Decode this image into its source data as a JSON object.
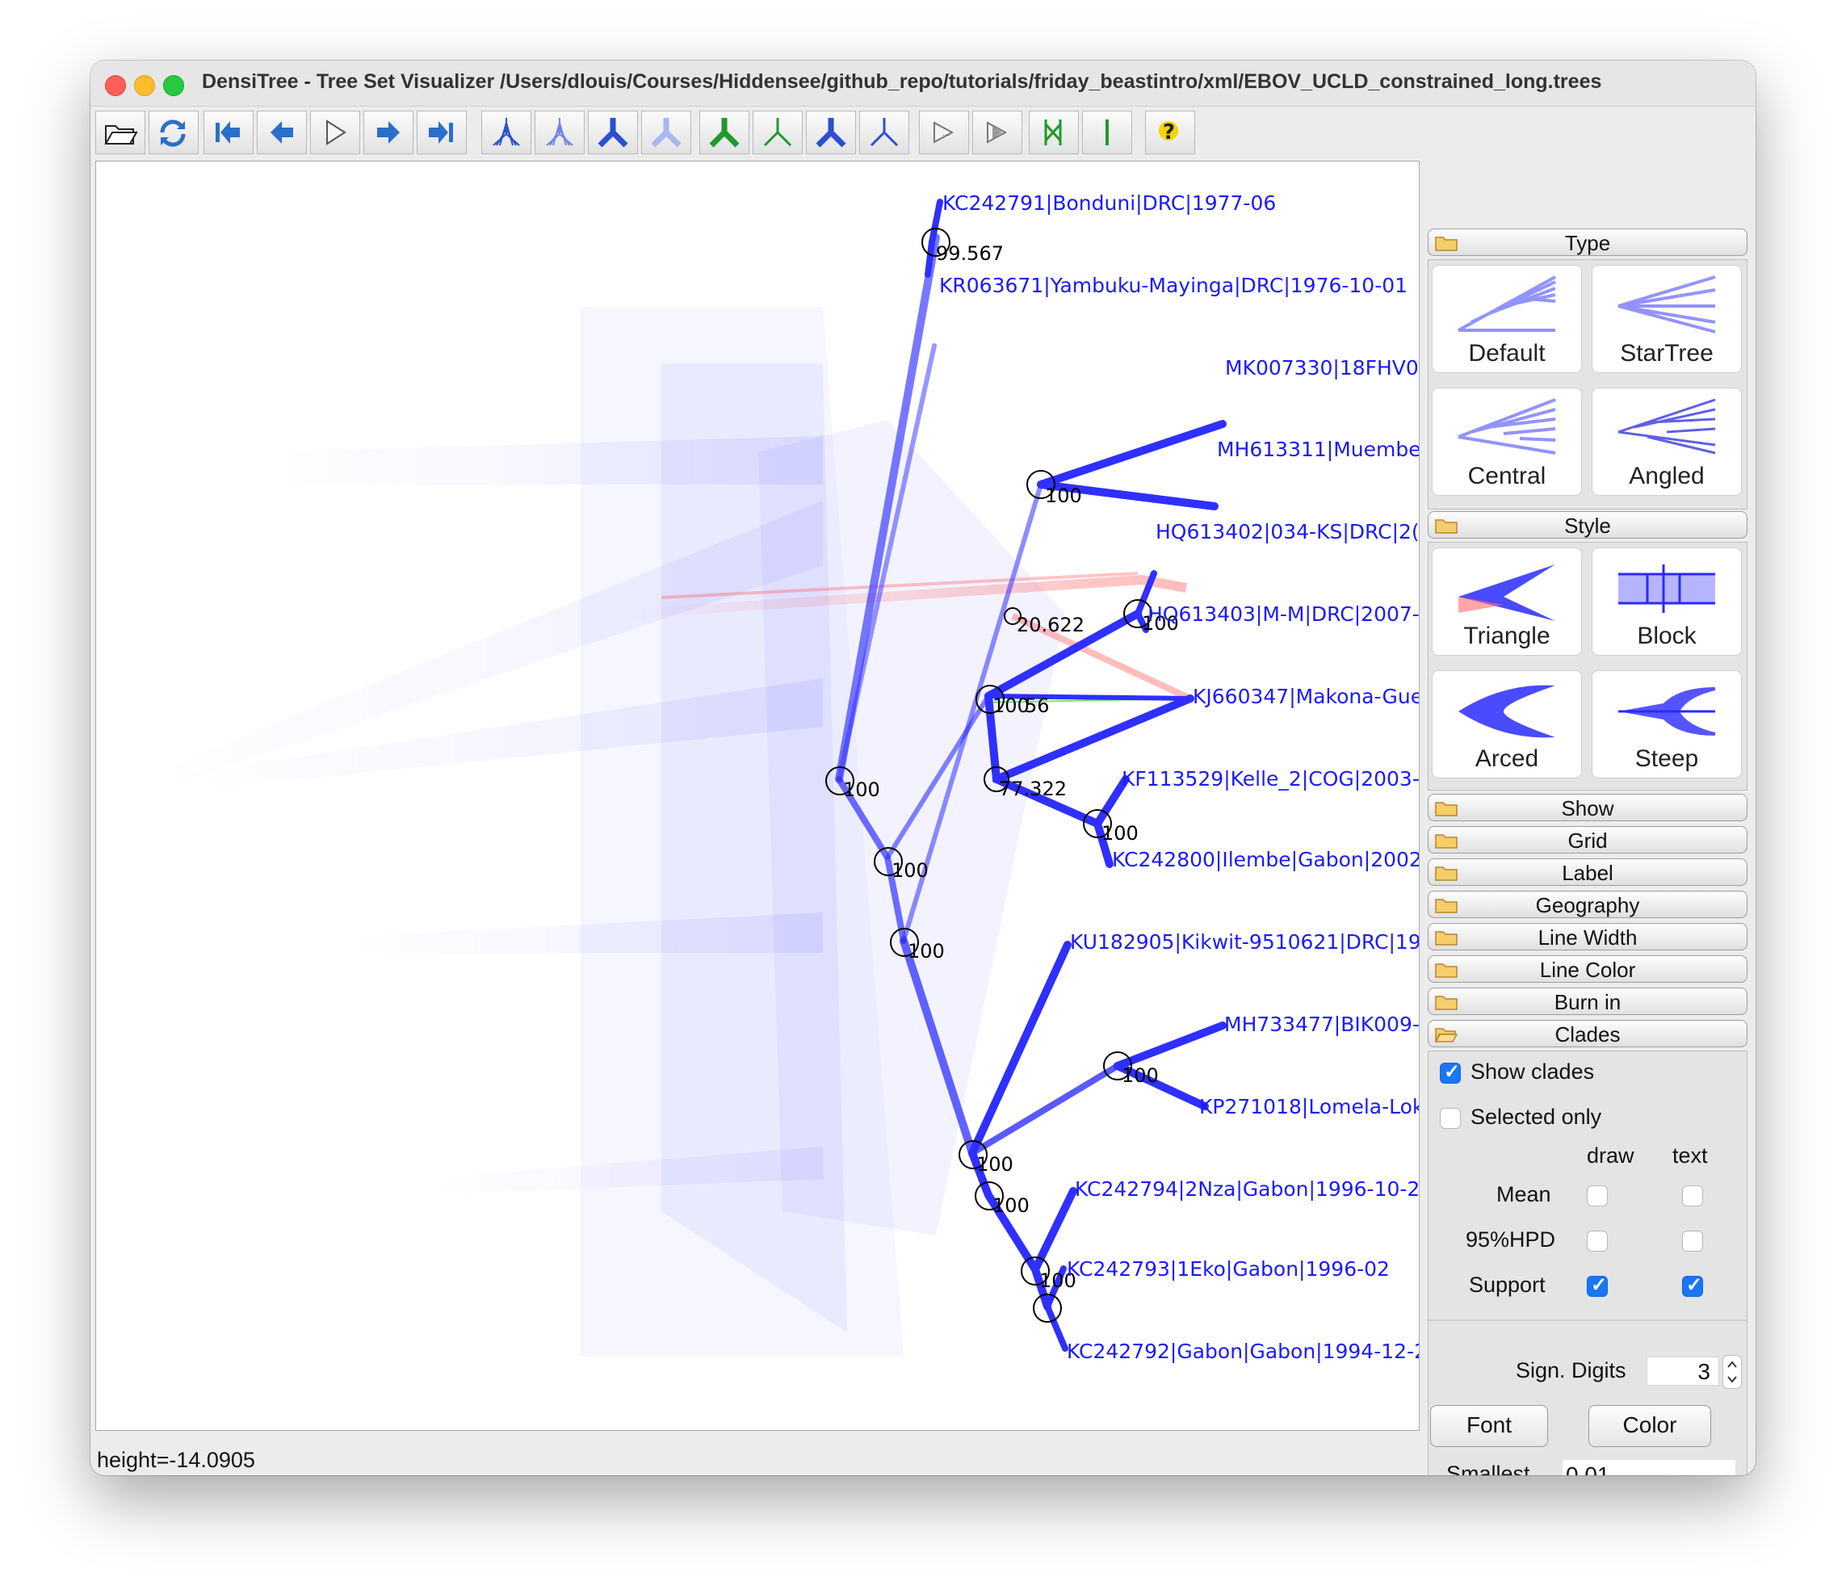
{
  "window": {
    "title": "DensiTree - Tree Set Visualizer /Users/dlouis/Courses/Hiddensee/github_repo/tutorials/friday_beastintro/xml/EBOV_UCLD_constrained_long.trees"
  },
  "toolbar": {
    "buttons": [
      {
        "name": "open-file",
        "icon": "folder-open-icon"
      },
      {
        "name": "reload",
        "icon": "refresh-icon"
      },
      {
        "name": "first",
        "icon": "first-icon"
      },
      {
        "name": "previous",
        "icon": "arrow-left-icon"
      },
      {
        "name": "play",
        "icon": "play-icon"
      },
      {
        "name": "next",
        "icon": "arrow-right-icon"
      },
      {
        "name": "last",
        "icon": "last-icon"
      },
      {
        "name": "show-trees-dark",
        "icon": "tree-set-icon"
      },
      {
        "name": "show-trees-light",
        "icon": "tree-set-light-icon"
      },
      {
        "name": "consensus-dark",
        "icon": "consensus-tree-icon"
      },
      {
        "name": "consensus-light",
        "icon": "consensus-tree-light-icon"
      },
      {
        "name": "root-canal-green",
        "icon": "green-tree-icon"
      },
      {
        "name": "root-canal-green-thin",
        "icon": "green-tree-thin-icon"
      },
      {
        "name": "tree-blue",
        "icon": "blue-tree-icon"
      },
      {
        "name": "tree-blue-thin",
        "icon": "blue-tree-thin-icon"
      },
      {
        "name": "animate",
        "icon": "animate-icon"
      },
      {
        "name": "animate-step",
        "icon": "animate-step-icon"
      },
      {
        "name": "compare",
        "icon": "compare-icon"
      },
      {
        "name": "single-line",
        "icon": "line-icon"
      },
      {
        "name": "help",
        "icon": "help-icon"
      }
    ],
    "colors": {
      "blue": "#2b4fd0",
      "lightblue": "#a9b6f0",
      "green": "#1f9a2a"
    }
  },
  "status": {
    "text": "height=-14.0905"
  },
  "taxa": [
    "KC242791|Bonduni|DRC|1977-06",
    "KR063671|Yambuku-Mayinga|DRC|1976-10-01",
    "MK007330|18FHV0!",
    "MH613311|Muembe.",
    "HQ613402|034-KS|DRC|2(",
    "HQ613403|M-M|DRC|2007-",
    "KJ660347|Makona-Gue",
    "KF113529|Kelle_2|COG|2003-",
    "KC242800|Ilembe|Gabon|2002-",
    "KU182905|Kikwit-9510621|DRC|19!",
    "MH733477|BIK009-",
    "KP271018|Lomela-Lok",
    "KC242794|2Nza|Gabon|1996-10-2",
    "KC242793|1Eko|Gabon|1996-02",
    "KC242792|Gabon|Gabon|1994-12-2"
  ],
  "supports": [
    "99.567",
    "100",
    "100",
    "20.622",
    "100",
    "56",
    "77.322",
    "100",
    "100",
    "100",
    "100",
    "100",
    "100",
    "100",
    "100"
  ],
  "sidebar": {
    "sections": {
      "type": "Type",
      "style": "Style",
      "show": "Show",
      "grid": "Grid",
      "label": "Label",
      "geography": "Geography",
      "line_width": "Line Width",
      "line_color": "Line Color",
      "burn_in": "Burn in",
      "clades": "Clades"
    },
    "type_options": [
      "Default",
      "StarTree",
      "Central",
      "Angled"
    ],
    "style_options": [
      "Triangle",
      "Block",
      "Arced",
      "Steep"
    ],
    "clades": {
      "show_clades": "Show clades",
      "show_clades_checked": true,
      "selected_only": "Selected only",
      "selected_only_checked": false,
      "col_draw": "draw",
      "col_text": "text",
      "rows": [
        {
          "label": "Mean",
          "draw": false,
          "text": false
        },
        {
          "label": "95%HPD",
          "draw": false,
          "text": false
        },
        {
          "label": "Support",
          "draw": true,
          "text": true
        }
      ],
      "sign_digits_label": "Sign. Digits",
      "sign_digits_value": "3",
      "font_button": "Font",
      "color_button": "Color",
      "smallest_label": "Smallest",
      "smallest_value": "0.01"
    }
  }
}
